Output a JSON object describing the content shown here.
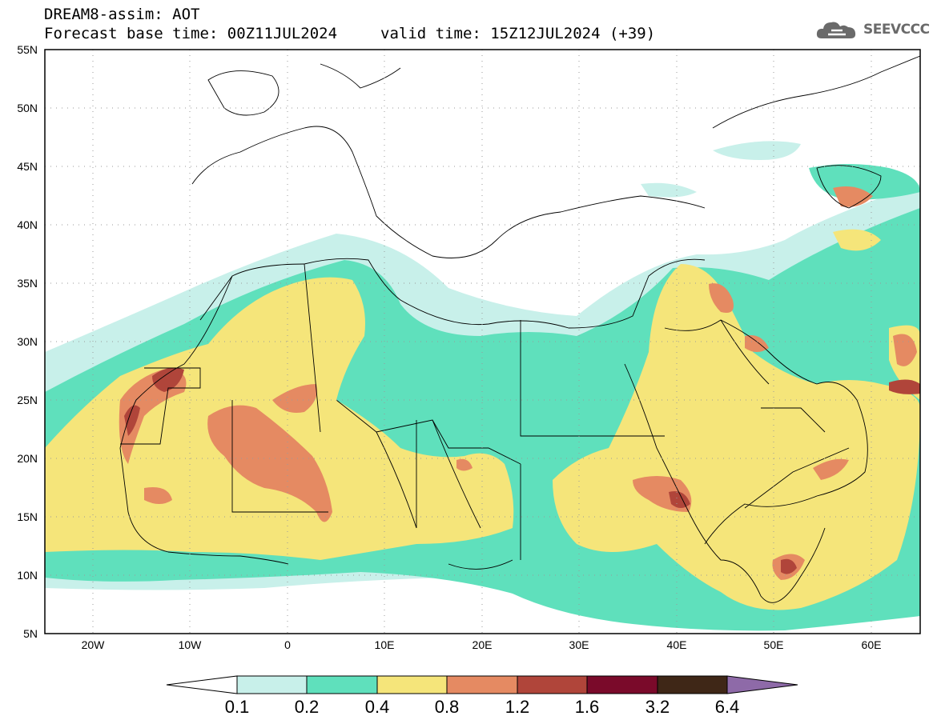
{
  "header": {
    "line1": "DREAM8-assim: AOT",
    "line2": "Forecast base time: 00Z11JUL2024",
    "valid": "valid time: 15Z12JUL2024 (+39)"
  },
  "logo": {
    "text": "SEEVCCC",
    "icon": "cloud-icon"
  },
  "map": {
    "region": "North Africa, Europe and the Middle East",
    "lon_range": [
      -25,
      65
    ],
    "lat_range": [
      5,
      55
    ],
    "lat_labels": [
      "55N",
      "50N",
      "45N",
      "40N",
      "35N",
      "30N",
      "25N",
      "20N",
      "15N",
      "10N",
      "5N"
    ],
    "lon_labels": [
      "20W",
      "10W",
      "0",
      "10E",
      "20E",
      "30E",
      "40E",
      "50E",
      "60E"
    ]
  },
  "colorbar": {
    "labels": [
      "0.1",
      "0.2",
      "0.4",
      "0.8",
      "1.2",
      "1.6",
      "3.2",
      "6.4"
    ],
    "colors": [
      "#ffffff",
      "#c8f0ea",
      "#5fe0bc",
      "#f5e57a",
      "#e58a62",
      "#b0453a",
      "#7a0a2a",
      "#3f2717",
      "#8e6aa8"
    ]
  }
}
